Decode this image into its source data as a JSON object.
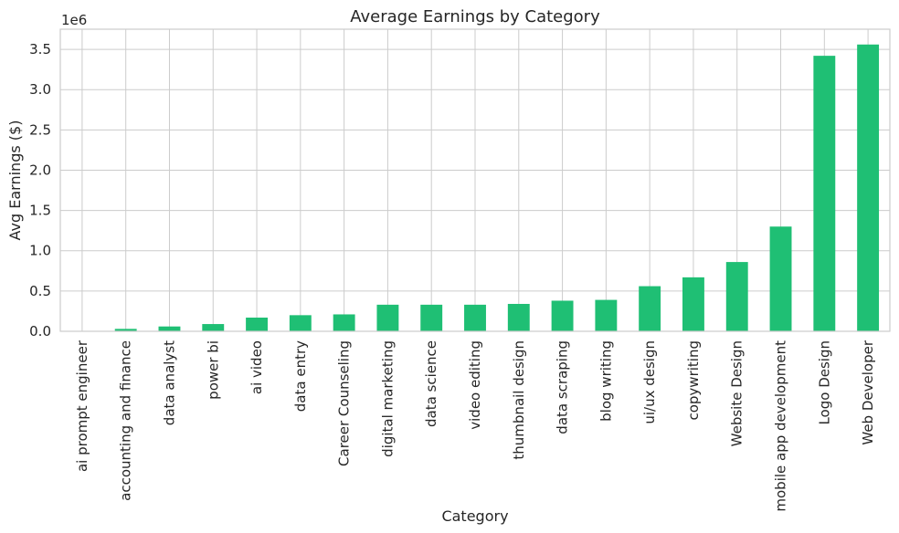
{
  "chart_data": {
    "type": "bar",
    "title": "Average Earnings by Category",
    "xlabel": "Category",
    "ylabel": "Avg Earnings ($)",
    "y_offset_label": "1e6",
    "ylim": [
      0,
      3.75
    ],
    "y_ticks": [
      0,
      0.5,
      1.0,
      1.5,
      2.0,
      2.5,
      3.0,
      3.5
    ],
    "y_tick_labels": [
      "0.0",
      "0.5",
      "1.0",
      "1.5",
      "2.0",
      "2.5",
      "3.0",
      "3.5"
    ],
    "grid": true,
    "bar_color": "#1fbf74",
    "categories": [
      "ai prompt engineer",
      "accounting and finance",
      "data analyst",
      "power bi",
      "ai video",
      "data entry",
      "Career Counseling",
      "digital marketing",
      "data science",
      "video editing",
      "thumbnail design",
      "data scraping",
      "blog writing",
      "ui/ux design",
      "copywriting",
      "Website Design",
      "mobile app development",
      "Logo Design",
      "Web Developer"
    ],
    "values": [
      0,
      0.03,
      0.06,
      0.09,
      0.17,
      0.2,
      0.21,
      0.33,
      0.33,
      0.33,
      0.34,
      0.38,
      0.39,
      0.56,
      0.67,
      0.86,
      1.3,
      3.42,
      3.56
    ]
  }
}
